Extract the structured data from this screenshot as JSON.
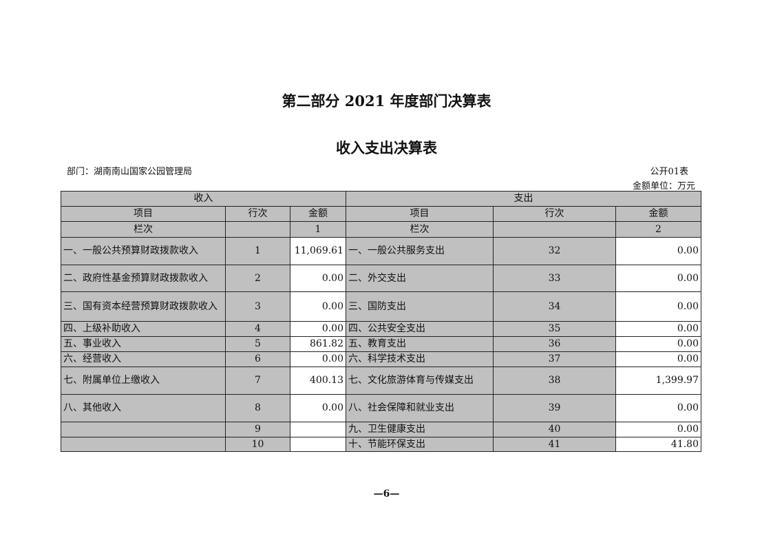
{
  "title": "第二部分 2021 年度部门决算表",
  "subtitle": "收入支出决算表",
  "department": "部门：湖南南山国家公园管理局",
  "table_code": "公开01表",
  "unit": "金额单位：万元",
  "headers": {
    "income": "收入",
    "expense": "支出",
    "item": "项目",
    "row_no": "行次",
    "amount": "金额",
    "column": "栏次",
    "col1": "1",
    "col2": "2"
  },
  "rows": [
    {
      "in_item": "一、一般公共预算财政拨款收入",
      "in_no": "1",
      "in_amt": "11,069.61",
      "ex_item": "一、一般公共服务支出",
      "ex_no": "32",
      "ex_amt": "0.00"
    },
    {
      "in_item": "二、政府性基金预算财政拨款收入",
      "in_no": "2",
      "in_amt": "0.00",
      "ex_item": "二、外交支出",
      "ex_no": "33",
      "ex_amt": "0.00"
    },
    {
      "in_item": "三、国有资本经营预算财政拨款收入",
      "in_no": "3",
      "in_amt": "0.00",
      "ex_item": "三、国防支出",
      "ex_no": "34",
      "ex_amt": "0.00"
    },
    {
      "in_item": "四、上级补助收入",
      "in_no": "4",
      "in_amt": "0.00",
      "ex_item": "四、公共安全支出",
      "ex_no": "35",
      "ex_amt": "0.00"
    },
    {
      "in_item": "五、事业收入",
      "in_no": "5",
      "in_amt": "861.82",
      "ex_item": "五、教育支出",
      "ex_no": "36",
      "ex_amt": "0.00"
    },
    {
      "in_item": "六、经营收入",
      "in_no": "6",
      "in_amt": "0.00",
      "ex_item": "六、科学技术支出",
      "ex_no": "37",
      "ex_amt": "0.00"
    },
    {
      "in_item": "七、附属单位上缴收入",
      "in_no": "7",
      "in_amt": "400.13",
      "ex_item": "七、文化旅游体育与传媒支出",
      "ex_no": "38",
      "ex_amt": "1,399.97"
    },
    {
      "in_item": "八、其他收入",
      "in_no": "8",
      "in_amt": "0.00",
      "ex_item": "八、社会保障和就业支出",
      "ex_no": "39",
      "ex_amt": "0.00"
    },
    {
      "in_item": "",
      "in_no": "9",
      "in_amt": "",
      "ex_item": "九、卫生健康支出",
      "ex_no": "40",
      "ex_amt": "0.00"
    },
    {
      "in_item": "",
      "in_no": "10",
      "in_amt": "",
      "ex_item": "十、节能环保支出",
      "ex_no": "41",
      "ex_amt": "41.80"
    }
  ],
  "page_number": "—6—"
}
